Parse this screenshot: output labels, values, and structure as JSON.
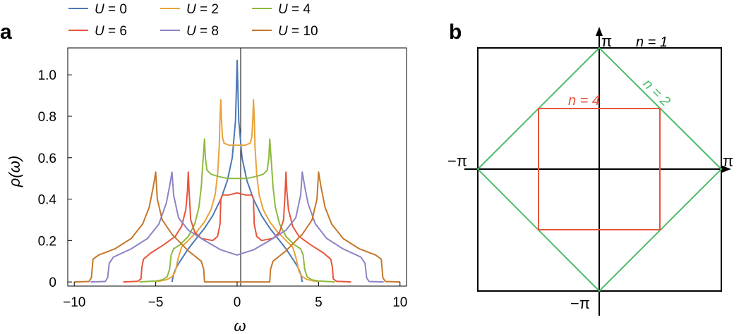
{
  "panel_a": {
    "label": "a"
  },
  "panel_b": {
    "label": "b",
    "axis_labels": {
      "top": "π",
      "bottom": "−π",
      "left": "−π",
      "right": "π"
    },
    "contours": [
      {
        "n_label": "n = 1",
        "color": "#000000",
        "shape": "square"
      },
      {
        "n_label": "n = 2",
        "color": "#4cbb6c",
        "shape": "diamond"
      },
      {
        "n_label": "n = 4",
        "color": "#e8553b",
        "shape": "half-square"
      }
    ]
  },
  "legend": [
    {
      "label": "U = 0",
      "var": "U",
      "rest": " = 0",
      "color": "#4a78b8"
    },
    {
      "label": "U = 2",
      "var": "U",
      "rest": " = 2",
      "color": "#e8a33a"
    },
    {
      "label": "U = 4",
      "var": "U",
      "rest": " = 4",
      "color": "#8dba3e"
    },
    {
      "label": "U = 6",
      "var": "U",
      "rest": " = 6",
      "color": "#e8553b"
    },
    {
      "label": "U = 8",
      "var": "U",
      "rest": " = 8",
      "color": "#8c84c4"
    },
    {
      "label": "U = 10",
      "var": "U",
      "rest": " = 10",
      "color": "#c6772a"
    }
  ],
  "chart_data": [
    {
      "type": "line",
      "panel": "a",
      "xlabel": "ω",
      "ylabel": "ρ(ω)",
      "xlim": [
        -10.4,
        10.4
      ],
      "ylim": [
        -0.02,
        1.13
      ],
      "xticks": [
        -10,
        -5,
        0,
        5,
        10
      ],
      "xtick_labels": [
        "−10",
        "−5",
        "0",
        "5",
        "10"
      ],
      "yticks": [
        0,
        0.2,
        0.4,
        0.6,
        0.8,
        1.0
      ],
      "ytick_labels": [
        "0",
        "0.2",
        "0.4",
        "0.6",
        "0.8",
        "1.0"
      ],
      "grid": false,
      "legend_position": "top",
      "series": [
        {
          "name": "U = 0",
          "color": "#4a78b8",
          "points": [
            [
              -4,
              0
            ],
            [
              -3.9,
              0.04
            ],
            [
              -3.7,
              0.075
            ],
            [
              -3.5,
              0.1
            ],
            [
              -3,
              0.16
            ],
            [
              -2.5,
              0.21
            ],
            [
              -2,
              0.26
            ],
            [
              -1.5,
              0.32
            ],
            [
              -1,
              0.4
            ],
            [
              -0.6,
              0.49
            ],
            [
              -0.3,
              0.6
            ],
            [
              -0.1,
              0.78
            ],
            [
              0,
              1.07
            ],
            [
              0.1,
              0.78
            ],
            [
              0.3,
              0.6
            ],
            [
              0.6,
              0.49
            ],
            [
              1,
              0.4
            ],
            [
              1.5,
              0.32
            ],
            [
              2,
              0.26
            ],
            [
              2.5,
              0.21
            ],
            [
              3,
              0.16
            ],
            [
              3.5,
              0.1
            ],
            [
              3.7,
              0.075
            ],
            [
              3.9,
              0.04
            ],
            [
              4,
              0
            ]
          ]
        },
        {
          "name": "U = 2",
          "color": "#e8a33a",
          "points": [
            [
              -5,
              0
            ],
            [
              -4.9,
              0.003
            ],
            [
              -4.7,
              0.005
            ],
            [
              -4.3,
              0.012
            ],
            [
              -4.0,
              0.025
            ],
            [
              -3.8,
              0.05
            ],
            [
              -3.6,
              0.12
            ],
            [
              -3.4,
              0.17
            ],
            [
              -3,
              0.2
            ],
            [
              -2.5,
              0.24
            ],
            [
              -2,
              0.29
            ],
            [
              -1.6,
              0.35
            ],
            [
              -1.35,
              0.42
            ],
            [
              -1.2,
              0.52
            ],
            [
              -1.1,
              0.65
            ],
            [
              -1.05,
              0.8
            ],
            [
              -1.0,
              0.88
            ],
            [
              -0.97,
              0.8
            ],
            [
              -0.9,
              0.7
            ],
            [
              -0.8,
              0.67
            ],
            [
              -0.5,
              0.66
            ],
            [
              0,
              0.66
            ],
            [
              0.5,
              0.66
            ],
            [
              0.8,
              0.67
            ],
            [
              0.9,
              0.7
            ],
            [
              0.97,
              0.8
            ],
            [
              1.0,
              0.88
            ],
            [
              1.05,
              0.8
            ],
            [
              1.1,
              0.65
            ],
            [
              1.2,
              0.52
            ],
            [
              1.35,
              0.42
            ],
            [
              1.6,
              0.35
            ],
            [
              2,
              0.29
            ],
            [
              2.5,
              0.24
            ],
            [
              3,
              0.2
            ],
            [
              3.4,
              0.17
            ],
            [
              3.6,
              0.12
            ],
            [
              3.8,
              0.05
            ],
            [
              4.0,
              0.025
            ],
            [
              4.3,
              0.012
            ],
            [
              4.7,
              0.005
            ],
            [
              4.9,
              0.003
            ],
            [
              5,
              0
            ]
          ]
        },
        {
          "name": "U = 4",
          "color": "#8dba3e",
          "points": [
            [
              -6,
              0
            ],
            [
              -5,
              0.005
            ],
            [
              -4.6,
              0.01
            ],
            [
              -4.3,
              0.025
            ],
            [
              -4.15,
              0.06
            ],
            [
              -4.05,
              0.13
            ],
            [
              -3.9,
              0.16
            ],
            [
              -3.5,
              0.18
            ],
            [
              -3,
              0.22
            ],
            [
              -2.6,
              0.28
            ],
            [
              -2.35,
              0.36
            ],
            [
              -2.2,
              0.46
            ],
            [
              -2.1,
              0.58
            ],
            [
              -2.0,
              0.69
            ],
            [
              -1.95,
              0.6
            ],
            [
              -1.85,
              0.54
            ],
            [
              -1.6,
              0.52
            ],
            [
              -1.2,
              0.51
            ],
            [
              -0.6,
              0.5
            ],
            [
              0,
              0.5
            ],
            [
              0.6,
              0.5
            ],
            [
              1.2,
              0.51
            ],
            [
              1.6,
              0.52
            ],
            [
              1.85,
              0.54
            ],
            [
              1.95,
              0.6
            ],
            [
              2.0,
              0.69
            ],
            [
              2.1,
              0.58
            ],
            [
              2.2,
              0.46
            ],
            [
              2.35,
              0.36
            ],
            [
              2.6,
              0.28
            ],
            [
              3,
              0.22
            ],
            [
              3.5,
              0.18
            ],
            [
              3.9,
              0.16
            ],
            [
              4.05,
              0.13
            ],
            [
              4.15,
              0.06
            ],
            [
              4.3,
              0.025
            ],
            [
              4.6,
              0.01
            ],
            [
              5,
              0.005
            ],
            [
              6,
              0
            ]
          ]
        },
        {
          "name": "U = 6",
          "color": "#e8553b",
          "points": [
            [
              -7,
              0
            ],
            [
              -6.1,
              0.003
            ],
            [
              -5.9,
              0.015
            ],
            [
              -5.85,
              0.07
            ],
            [
              -5.75,
              0.11
            ],
            [
              -5.3,
              0.14
            ],
            [
              -4.5,
              0.18
            ],
            [
              -3.8,
              0.22
            ],
            [
              -3.4,
              0.27
            ],
            [
              -3.15,
              0.35
            ],
            [
              -3.05,
              0.44
            ],
            [
              -3.0,
              0.53
            ],
            [
              -2.95,
              0.44
            ],
            [
              -2.85,
              0.3
            ],
            [
              -2.6,
              0.24
            ],
            [
              -2.2,
              0.21
            ],
            [
              -1.5,
              0.2
            ],
            [
              -1.2,
              0.22
            ],
            [
              -1.05,
              0.28
            ],
            [
              -1.0,
              0.4
            ],
            [
              -0.9,
              0.42
            ],
            [
              -0.5,
              0.42
            ],
            [
              0,
              0.43
            ],
            [
              0.5,
              0.42
            ],
            [
              0.9,
              0.42
            ],
            [
              1.0,
              0.4
            ],
            [
              1.05,
              0.28
            ],
            [
              1.2,
              0.22
            ],
            [
              1.5,
              0.2
            ],
            [
              2.2,
              0.21
            ],
            [
              2.6,
              0.24
            ],
            [
              2.85,
              0.3
            ],
            [
              2.95,
              0.44
            ],
            [
              3.0,
              0.53
            ],
            [
              3.05,
              0.44
            ],
            [
              3.15,
              0.35
            ],
            [
              3.4,
              0.27
            ],
            [
              3.8,
              0.22
            ],
            [
              4.5,
              0.18
            ],
            [
              5.3,
              0.14
            ],
            [
              5.75,
              0.11
            ],
            [
              5.85,
              0.07
            ],
            [
              5.9,
              0.015
            ],
            [
              6.1,
              0.003
            ],
            [
              7,
              0
            ]
          ]
        },
        {
          "name": "U = 8",
          "color": "#8c84c4",
          "points": [
            [
              -9,
              0
            ],
            [
              -8.1,
              0.002
            ],
            [
              -7.95,
              0.02
            ],
            [
              -7.85,
              0.09
            ],
            [
              -7.6,
              0.12
            ],
            [
              -6.5,
              0.16
            ],
            [
              -5.5,
              0.21
            ],
            [
              -4.8,
              0.28
            ],
            [
              -4.35,
              0.38
            ],
            [
              -4.15,
              0.46
            ],
            [
              -4.0,
              0.53
            ],
            [
              -3.9,
              0.42
            ],
            [
              -3.6,
              0.31
            ],
            [
              -3,
              0.25
            ],
            [
              -2,
              0.2
            ],
            [
              -1,
              0.155
            ],
            [
              0,
              0.13
            ],
            [
              1,
              0.155
            ],
            [
              2,
              0.2
            ],
            [
              3,
              0.25
            ],
            [
              3.6,
              0.31
            ],
            [
              3.9,
              0.42
            ],
            [
              4.0,
              0.53
            ],
            [
              4.15,
              0.46
            ],
            [
              4.35,
              0.38
            ],
            [
              4.8,
              0.28
            ],
            [
              5.5,
              0.21
            ],
            [
              6.5,
              0.16
            ],
            [
              7.6,
              0.12
            ],
            [
              7.85,
              0.09
            ],
            [
              7.95,
              0.02
            ],
            [
              8.1,
              0.002
            ],
            [
              9,
              0
            ]
          ]
        },
        {
          "name": "U = 10",
          "color": "#c6772a",
          "points": [
            [
              -10,
              0
            ],
            [
              -9.1,
              0.002
            ],
            [
              -8.95,
              0.02
            ],
            [
              -8.85,
              0.11
            ],
            [
              -8.5,
              0.13
            ],
            [
              -7.5,
              0.16
            ],
            [
              -6.5,
              0.21
            ],
            [
              -5.8,
              0.28
            ],
            [
              -5.4,
              0.36
            ],
            [
              -5.15,
              0.46
            ],
            [
              -5.0,
              0.53
            ],
            [
              -4.9,
              0.4
            ],
            [
              -4.6,
              0.3
            ],
            [
              -4,
              0.23
            ],
            [
              -3,
              0.15
            ],
            [
              -2.2,
              0.1
            ],
            [
              -2.05,
              0.06
            ],
            [
              -2.0,
              0
            ],
            [
              2.0,
              0
            ],
            [
              2.05,
              0.06
            ],
            [
              2.2,
              0.1
            ],
            [
              3,
              0.15
            ],
            [
              4,
              0.23
            ],
            [
              4.6,
              0.3
            ],
            [
              4.9,
              0.4
            ],
            [
              5.0,
              0.53
            ],
            [
              5.15,
              0.46
            ],
            [
              5.4,
              0.36
            ],
            [
              5.8,
              0.28
            ],
            [
              6.5,
              0.21
            ],
            [
              7.5,
              0.16
            ],
            [
              8.5,
              0.13
            ],
            [
              8.85,
              0.11
            ],
            [
              8.95,
              0.02
            ],
            [
              9.1,
              0.002
            ],
            [
              10,
              0
            ]
          ]
        }
      ]
    }
  ]
}
